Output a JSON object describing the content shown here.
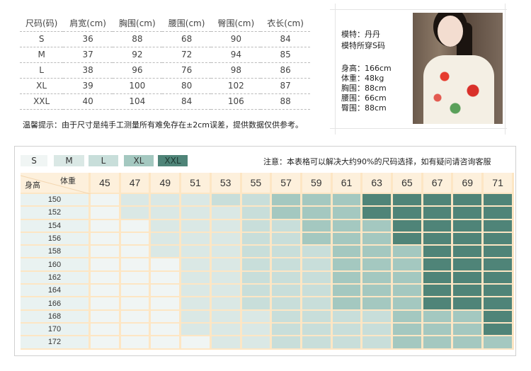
{
  "size_table": {
    "headers": [
      "尺码(码)",
      "肩宽(cm)",
      "胸围(cm)",
      "腰围(cm)",
      "臀围(cm)",
      "衣长(cm)"
    ],
    "rows": [
      [
        "S",
        "36",
        "88",
        "68",
        "90",
        "84"
      ],
      [
        "M",
        "37",
        "92",
        "72",
        "94",
        "85"
      ],
      [
        "L",
        "38",
        "96",
        "76",
        "98",
        "86"
      ],
      [
        "XL",
        "39",
        "100",
        "80",
        "102",
        "87"
      ],
      [
        "XXL",
        "40",
        "104",
        "84",
        "106",
        "88"
      ]
    ],
    "tip": "温馨提示：由于尺寸是纯手工测量所有难免存在±2cm误差，提供数据仅供参考。"
  },
  "model": {
    "name": "模特：丹丹",
    "wears": "模特所穿S码",
    "stats": [
      "身高：166cm",
      "体重：48kg",
      "胸围：88cm",
      "腰围：66cm",
      "臀围：88cm"
    ]
  },
  "chart": {
    "legend": [
      {
        "label": "S",
        "color": "#f0f5f4"
      },
      {
        "label": "M",
        "color": "#dae8e5"
      },
      {
        "label": "L",
        "color": "#c8deda"
      },
      {
        "label": "XL",
        "color": "#a4c8c0"
      },
      {
        "label": "XXL",
        "color": "#4f8478",
        "text_color": "#1e3a33"
      }
    ],
    "note": "注意：本表格可以解决大约90%的尺码选择，如有疑问请咨询客服",
    "weight_label": "体重",
    "height_label": "身高",
    "weights": [
      "45",
      "47",
      "49",
      "51",
      "53",
      "55",
      "57",
      "59",
      "61",
      "63",
      "65",
      "67",
      "69",
      "71"
    ],
    "rows": [
      {
        "height": "150",
        "sizes": [
          "S",
          "M",
          "M",
          "M",
          "L",
          "L",
          "XL",
          "XL",
          "XL",
          "XXL",
          "XXL",
          "XXL",
          "XXL",
          "XXL"
        ]
      },
      {
        "height": "152",
        "sizes": [
          "S",
          "M",
          "M",
          "M",
          "M",
          "L",
          "XL",
          "XL",
          "XL",
          "XXL",
          "XXL",
          "XXL",
          "XXL",
          "XXL"
        ]
      },
      {
        "height": "154",
        "sizes": [
          "S",
          "S",
          "M",
          "M",
          "M",
          "L",
          "L",
          "XL",
          "XL",
          "XL",
          "XXL",
          "XXL",
          "XXL",
          "XXL"
        ]
      },
      {
        "height": "156",
        "sizes": [
          "S",
          "S",
          "M",
          "M",
          "M",
          "L",
          "L",
          "XL",
          "XL",
          "XL",
          "XXL",
          "XXL",
          "XXL",
          "XXL"
        ]
      },
      {
        "height": "158",
        "sizes": [
          "S",
          "S",
          "M",
          "M",
          "M",
          "L",
          "L",
          "L",
          "XL",
          "XL",
          "XL",
          "XXL",
          "XXL",
          "XXL"
        ]
      },
      {
        "height": "160",
        "sizes": [
          "S",
          "S",
          "S",
          "M",
          "M",
          "L",
          "L",
          "L",
          "XL",
          "XL",
          "XL",
          "XXL",
          "XXL",
          "XXL"
        ]
      },
      {
        "height": "162",
        "sizes": [
          "S",
          "S",
          "S",
          "M",
          "M",
          "L",
          "L",
          "L",
          "XL",
          "XL",
          "XL",
          "XXL",
          "XXL",
          "XXL"
        ]
      },
      {
        "height": "164",
        "sizes": [
          "S",
          "S",
          "S",
          "M",
          "M",
          "L",
          "L",
          "L",
          "XL",
          "XL",
          "XL",
          "XXL",
          "XXL",
          "XXL"
        ]
      },
      {
        "height": "166",
        "sizes": [
          "S",
          "S",
          "S",
          "M",
          "M",
          "L",
          "L",
          "L",
          "XL",
          "XL",
          "XL",
          "XXL",
          "XXL",
          "XXL"
        ]
      },
      {
        "height": "168",
        "sizes": [
          "S",
          "S",
          "S",
          "M",
          "M",
          "M",
          "L",
          "L",
          "L",
          "L",
          "XL",
          "XL",
          "XL",
          "XXL"
        ]
      },
      {
        "height": "170",
        "sizes": [
          "S",
          "S",
          "S",
          "M",
          "M",
          "M",
          "L",
          "L",
          "L",
          "L",
          "XL",
          "XL",
          "XL",
          "XXL"
        ]
      },
      {
        "height": "172",
        "sizes": [
          "S",
          "S",
          "S",
          "S",
          "M",
          "M",
          "L",
          "L",
          "L",
          "L",
          "XL",
          "XL",
          "XL",
          "XL"
        ]
      }
    ]
  }
}
